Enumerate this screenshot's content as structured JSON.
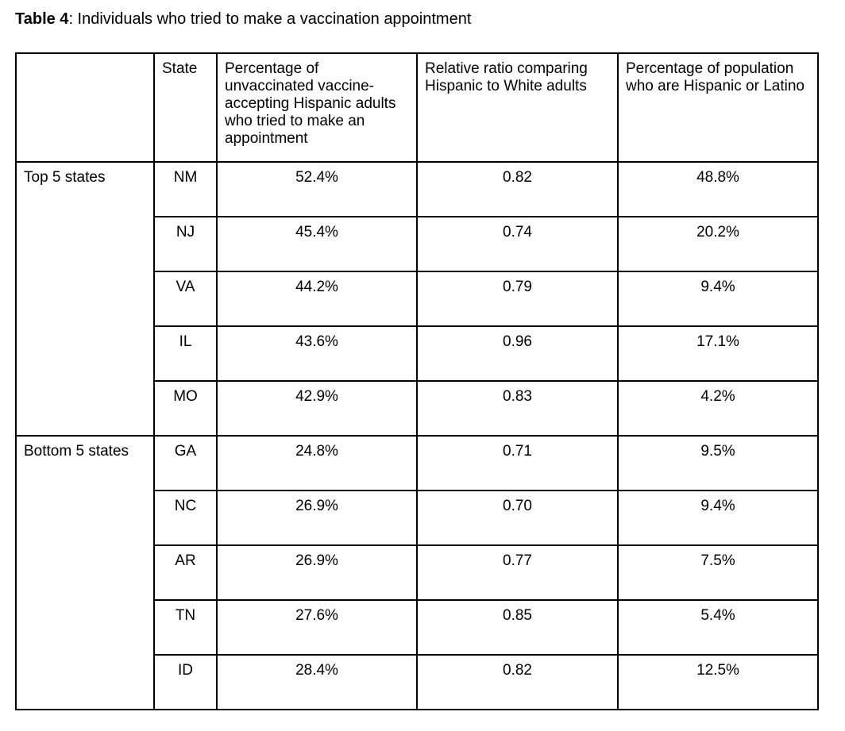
{
  "caption": {
    "label": "Table 4",
    "text": ": Individuals who tried to make a vaccination appointment"
  },
  "colors": {
    "background": "#ffffff",
    "text": "#000000",
    "border": "#000000"
  },
  "table": {
    "columns": {
      "group": "",
      "state": "State",
      "pct_tried": "Percentage of unvaccinated vaccine-accepting Hispanic adults who tried to make an appointment",
      "relative_ratio": "Relative ratio comparing Hispanic to White adults",
      "pct_population": "Percentage of population who are Hispanic or Latino"
    },
    "groups": [
      {
        "label": "Top 5 states",
        "rows": [
          {
            "state": "NM",
            "pct_tried": "52.4%",
            "relative_ratio": "0.82",
            "pct_population": "48.8%"
          },
          {
            "state": "NJ",
            "pct_tried": "45.4%",
            "relative_ratio": "0.74",
            "pct_population": "20.2%"
          },
          {
            "state": "VA",
            "pct_tried": "44.2%",
            "relative_ratio": "0.79",
            "pct_population": "9.4%"
          },
          {
            "state": "IL",
            "pct_tried": "43.6%",
            "relative_ratio": "0.96",
            "pct_population": "17.1%"
          },
          {
            "state": "MO",
            "pct_tried": "42.9%",
            "relative_ratio": "0.83",
            "pct_population": "4.2%"
          }
        ]
      },
      {
        "label": "Bottom 5 states",
        "rows": [
          {
            "state": "GA",
            "pct_tried": "24.8%",
            "relative_ratio": "0.71",
            "pct_population": "9.5%"
          },
          {
            "state": "NC",
            "pct_tried": "26.9%",
            "relative_ratio": "0.70",
            "pct_population": "9.4%"
          },
          {
            "state": "AR",
            "pct_tried": "26.9%",
            "relative_ratio": "0.77",
            "pct_population": "7.5%"
          },
          {
            "state": "TN",
            "pct_tried": "27.6%",
            "relative_ratio": "0.85",
            "pct_population": "5.4%"
          },
          {
            "state": "ID",
            "pct_tried": "28.4%",
            "relative_ratio": "0.82",
            "pct_population": "12.5%"
          }
        ]
      }
    ]
  }
}
